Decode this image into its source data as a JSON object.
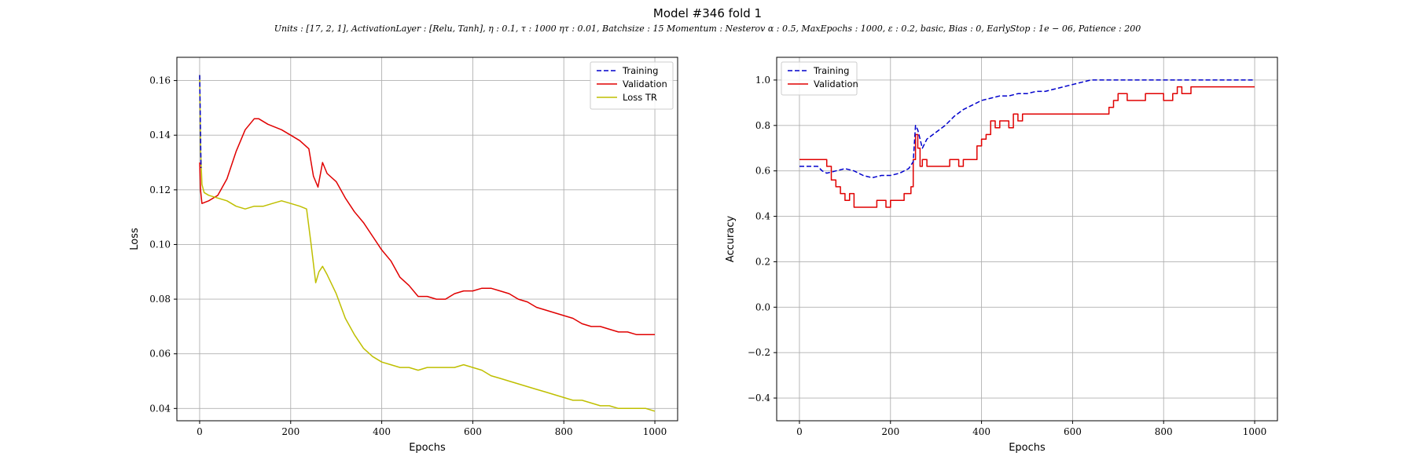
{
  "figure": {
    "title": "Model #346 fold 1",
    "subtitle": "Units : [17, 2, 1], ActivationLayer : [Relu, Tanh], η : 0.1, τ : 1000 ητ : 0.01, Batchsize : 15 Momentum : Nesterov α : 0.5, MaxEpochs : 1000, ε : 0.2, basic, Bias : 0, EarlyStop : 1e − 06, Patience : 200"
  },
  "colors": {
    "training": "#0000cc",
    "validation": "#e00000",
    "loss_tr": "#bfbf00"
  },
  "chart_data": [
    {
      "type": "line",
      "xlabel": "Epochs",
      "ylabel": "Loss",
      "xlim": [
        -50,
        1050
      ],
      "ylim": [
        0.0355,
        0.1685
      ],
      "xticks": [
        0,
        200,
        400,
        600,
        800,
        1000
      ],
      "yticks": [
        0.04,
        0.06,
        0.08,
        0.1,
        0.12,
        0.14,
        0.16
      ],
      "ytick_labels": [
        "0.04",
        "0.06",
        "0.08",
        "0.10",
        "0.12",
        "0.14",
        "0.16"
      ],
      "grid": true,
      "legend_position": "top-right",
      "series": [
        {
          "name": "Training",
          "style": "dashed",
          "color": "#0000cc",
          "x": [
            0,
            3
          ],
          "y": [
            0.162,
            0.128
          ]
        },
        {
          "name": "Validation",
          "style": "solid",
          "color": "#e00000",
          "x": [
            0,
            2,
            5,
            20,
            40,
            60,
            80,
            100,
            120,
            130,
            150,
            180,
            200,
            220,
            240,
            250,
            260,
            270,
            280,
            300,
            320,
            340,
            360,
            380,
            400,
            420,
            440,
            460,
            480,
            500,
            520,
            540,
            560,
            580,
            600,
            620,
            640,
            660,
            680,
            700,
            720,
            740,
            760,
            780,
            800,
            820,
            840,
            860,
            880,
            900,
            920,
            940,
            960,
            980,
            1000
          ],
          "y": [
            0.13,
            0.12,
            0.115,
            0.116,
            0.118,
            0.124,
            0.134,
            0.142,
            0.146,
            0.146,
            0.144,
            0.142,
            0.14,
            0.138,
            0.135,
            0.125,
            0.121,
            0.13,
            0.126,
            0.123,
            0.117,
            0.112,
            0.108,
            0.103,
            0.098,
            0.094,
            0.088,
            0.085,
            0.081,
            0.081,
            0.08,
            0.08,
            0.082,
            0.083,
            0.083,
            0.084,
            0.084,
            0.083,
            0.082,
            0.08,
            0.079,
            0.077,
            0.076,
            0.075,
            0.074,
            0.073,
            0.071,
            0.07,
            0.07,
            0.069,
            0.068,
            0.068,
            0.067,
            0.067,
            0.067
          ]
        },
        {
          "name": "Loss TR",
          "style": "solid",
          "color": "#bfbf00",
          "x": [
            0,
            2,
            5,
            10,
            20,
            40,
            60,
            80,
            100,
            120,
            140,
            160,
            180,
            200,
            220,
            235,
            245,
            255,
            262,
            270,
            280,
            300,
            320,
            340,
            360,
            380,
            400,
            420,
            440,
            460,
            480,
            500,
            520,
            540,
            560,
            580,
            600,
            620,
            640,
            660,
            680,
            700,
            720,
            740,
            760,
            780,
            800,
            820,
            840,
            860,
            880,
            900,
            920,
            940,
            960,
            980,
            1000
          ],
          "y": [
            0.162,
            0.135,
            0.122,
            0.119,
            0.118,
            0.117,
            0.116,
            0.114,
            0.113,
            0.114,
            0.114,
            0.115,
            0.116,
            0.115,
            0.114,
            0.113,
            0.1,
            0.086,
            0.09,
            0.092,
            0.089,
            0.082,
            0.073,
            0.067,
            0.062,
            0.059,
            0.057,
            0.056,
            0.055,
            0.055,
            0.054,
            0.055,
            0.055,
            0.055,
            0.055,
            0.056,
            0.055,
            0.054,
            0.052,
            0.051,
            0.05,
            0.049,
            0.048,
            0.047,
            0.046,
            0.045,
            0.044,
            0.043,
            0.043,
            0.042,
            0.041,
            0.041,
            0.04,
            0.04,
            0.04,
            0.04,
            0.039
          ]
        }
      ]
    },
    {
      "type": "line",
      "xlabel": "Epochs",
      "ylabel": "Accuracy",
      "xlim": [
        -50,
        1050
      ],
      "ylim": [
        -0.5,
        1.1
      ],
      "xticks": [
        0,
        200,
        400,
        600,
        800,
        1000
      ],
      "yticks": [
        -0.4,
        -0.2,
        0.0,
        0.2,
        0.4,
        0.6,
        0.8,
        1.0
      ],
      "ytick_labels": [
        "−0.4",
        "−0.2",
        "0.0",
        "0.2",
        "0.4",
        "0.6",
        "0.8",
        "1.0"
      ],
      "grid": true,
      "legend_position": "top-left",
      "series": [
        {
          "name": "Training",
          "style": "dashed",
          "color": "#0000cc",
          "x": [
            0,
            40,
            50,
            60,
            80,
            100,
            120,
            140,
            160,
            180,
            200,
            220,
            240,
            250,
            255,
            260,
            270,
            280,
            300,
            320,
            340,
            360,
            380,
            400,
            420,
            440,
            460,
            480,
            500,
            520,
            540,
            560,
            580,
            600,
            620,
            640,
            680,
            700,
            800,
            1000
          ],
          "y": [
            0.62,
            0.62,
            0.6,
            0.59,
            0.6,
            0.61,
            0.6,
            0.58,
            0.57,
            0.58,
            0.58,
            0.59,
            0.61,
            0.64,
            0.8,
            0.78,
            0.7,
            0.74,
            0.77,
            0.8,
            0.84,
            0.87,
            0.89,
            0.91,
            0.92,
            0.93,
            0.93,
            0.94,
            0.94,
            0.95,
            0.95,
            0.96,
            0.97,
            0.98,
            0.99,
            1.0,
            1.0,
            1.0,
            1.0,
            1.0
          ]
        },
        {
          "name": "Validation",
          "style": "step",
          "color": "#e00000",
          "x": [
            0,
            50,
            60,
            70,
            80,
            90,
            100,
            110,
            120,
            150,
            170,
            190,
            200,
            230,
            245,
            250,
            255,
            260,
            265,
            270,
            280,
            300,
            330,
            350,
            360,
            380,
            390,
            400,
            410,
            420,
            430,
            440,
            460,
            470,
            480,
            490,
            500,
            560,
            600,
            650,
            680,
            690,
            700,
            720,
            760,
            800,
            820,
            830,
            840,
            860,
            1000
          ],
          "y": [
            0.65,
            0.65,
            0.62,
            0.56,
            0.53,
            0.5,
            0.47,
            0.5,
            0.44,
            0.44,
            0.47,
            0.44,
            0.47,
            0.5,
            0.53,
            0.65,
            0.76,
            0.7,
            0.62,
            0.65,
            0.62,
            0.62,
            0.65,
            0.62,
            0.65,
            0.65,
            0.71,
            0.74,
            0.76,
            0.82,
            0.79,
            0.82,
            0.79,
            0.85,
            0.82,
            0.85,
            0.85,
            0.85,
            0.85,
            0.85,
            0.88,
            0.91,
            0.94,
            0.91,
            0.94,
            0.91,
            0.94,
            0.97,
            0.94,
            0.97,
            0.97
          ]
        }
      ]
    }
  ]
}
